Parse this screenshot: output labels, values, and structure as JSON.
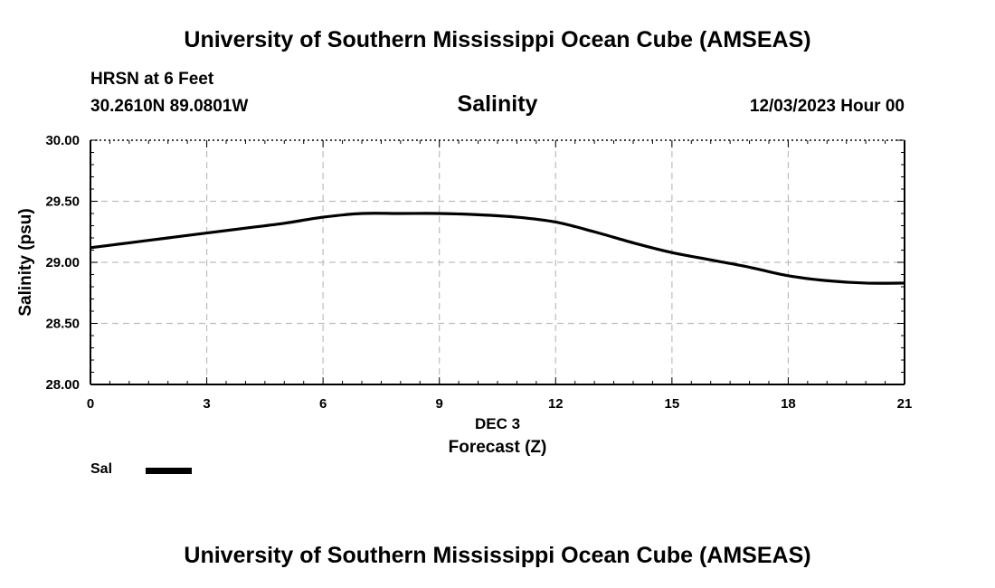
{
  "header": {
    "title": "University of Southern Mississippi Ocean Cube (AMSEAS)",
    "station": "HRSN at 6 Feet",
    "coordinates": "30.2610N  89.0801W",
    "date_label": "12/03/2023 Hour 00"
  },
  "footer": {
    "title": "University of Southern Mississippi Ocean Cube (AMSEAS)"
  },
  "legend": {
    "label": "Sal",
    "color": "#000000"
  },
  "chart_data": {
    "type": "line",
    "title": "Salinity",
    "xlabel": "Forecast (Z)",
    "xsublabel": "DEC 3",
    "ylabel": "Salinity (psu)",
    "xlim": [
      0,
      21
    ],
    "ylim": [
      28.0,
      30.0
    ],
    "xticks": [
      0,
      3,
      6,
      9,
      12,
      15,
      18,
      21
    ],
    "yticks": [
      28.0,
      28.5,
      29.0,
      29.5,
      30.0
    ],
    "ytick_labels": [
      "28.00",
      "28.50",
      "29.00",
      "29.50",
      "30.00"
    ],
    "grid": true,
    "series": [
      {
        "name": "Sal",
        "color": "#000000",
        "x": [
          0,
          1,
          2,
          3,
          4,
          5,
          6,
          7,
          8,
          9,
          10,
          11,
          12,
          13,
          14,
          15,
          16,
          17,
          18,
          19,
          20,
          21
        ],
        "values": [
          29.12,
          29.16,
          29.2,
          29.24,
          29.28,
          29.32,
          29.37,
          29.4,
          29.4,
          29.4,
          29.39,
          29.37,
          29.33,
          29.25,
          29.16,
          29.08,
          29.02,
          28.96,
          28.89,
          28.85,
          28.83,
          28.83
        ]
      }
    ]
  }
}
